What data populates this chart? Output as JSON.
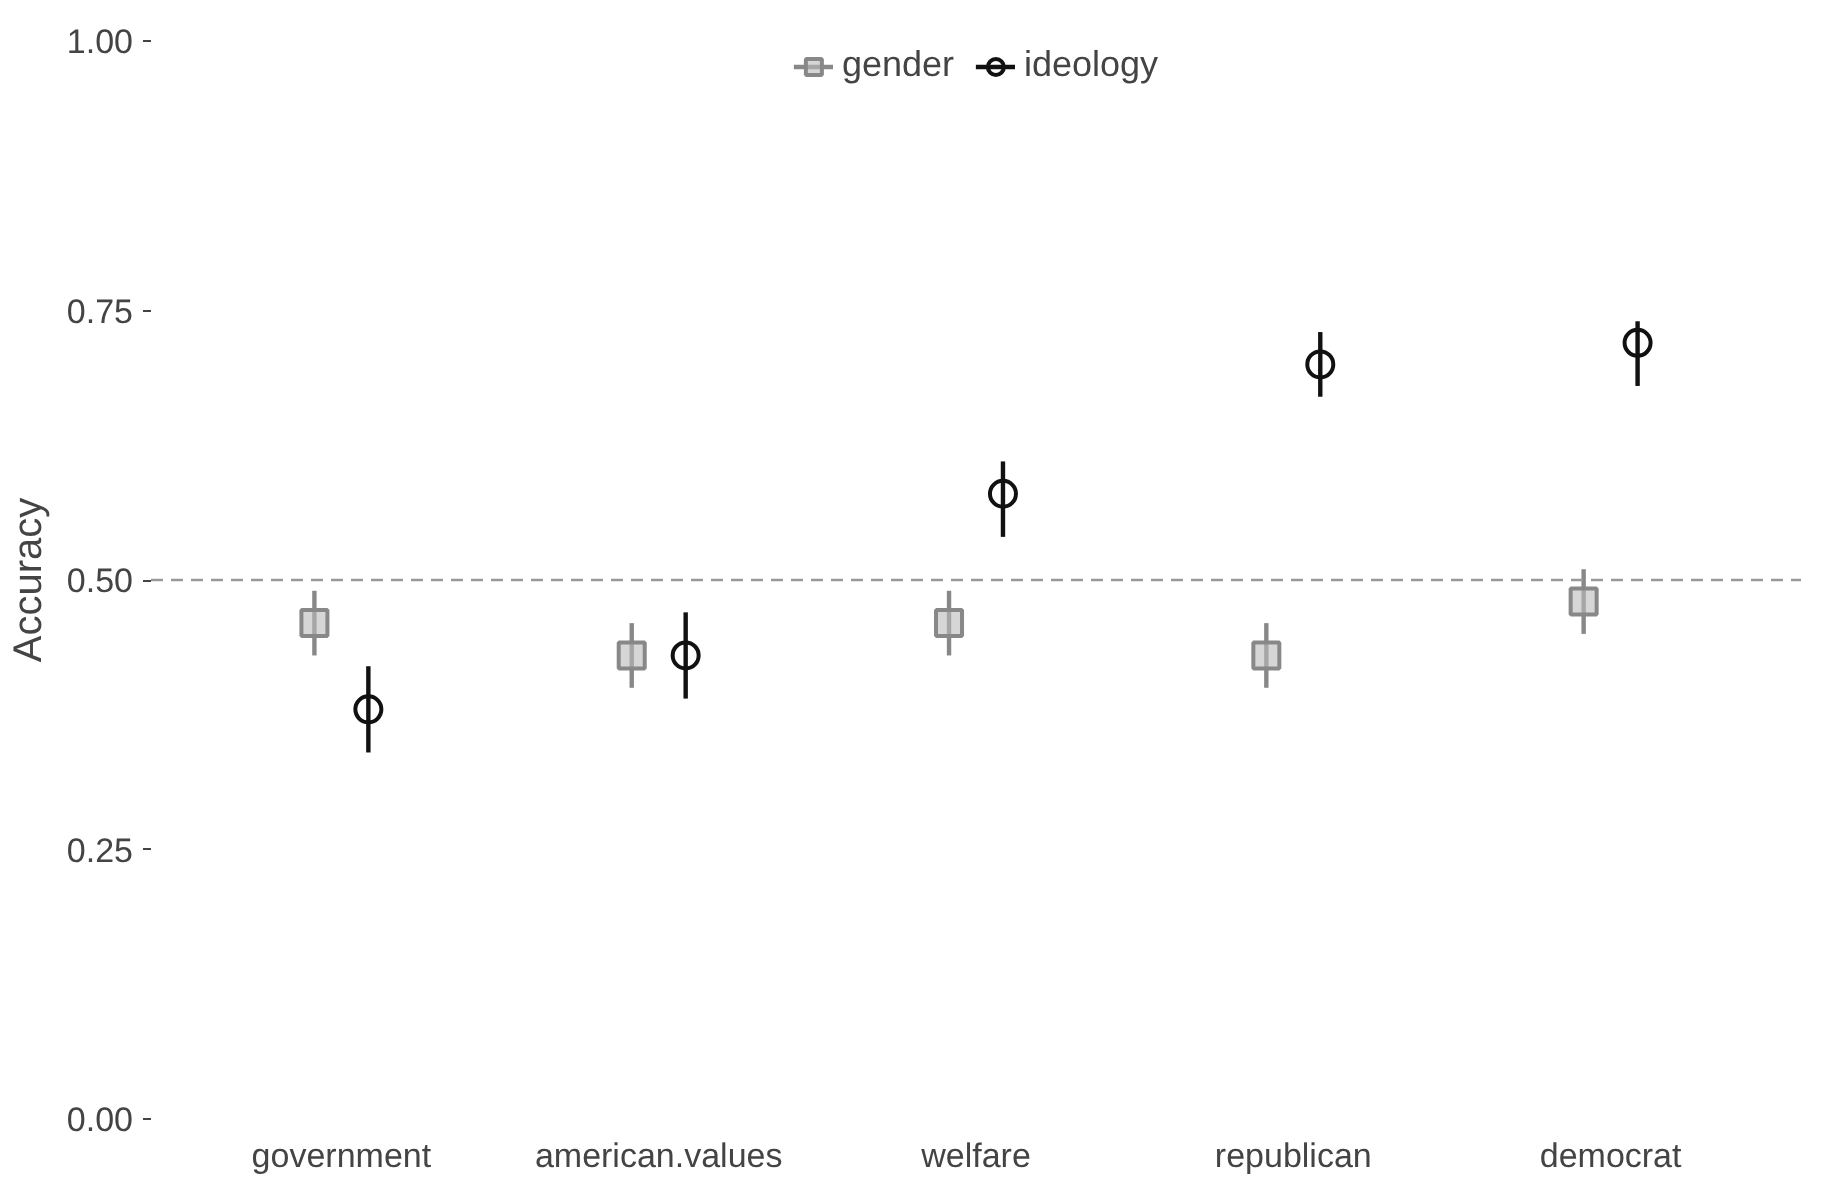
{
  "chart_data": {
    "type": "scatter",
    "ylabel": "Accuracy",
    "categories": [
      "government",
      "american.values",
      "welfare",
      "republican",
      "democrat"
    ],
    "series": [
      {
        "name": "gender",
        "color": "#888888",
        "marker": "square",
        "values": [
          0.46,
          0.43,
          0.46,
          0.43,
          0.48
        ],
        "errors": [
          [
            0.43,
            0.49
          ],
          [
            0.4,
            0.46
          ],
          [
            0.43,
            0.49
          ],
          [
            0.4,
            0.46
          ],
          [
            0.45,
            0.51
          ]
        ]
      },
      {
        "name": "ideology",
        "color": "#111111",
        "marker": "circle",
        "values": [
          0.38,
          0.43,
          0.58,
          0.7,
          0.72
        ],
        "errors": [
          [
            0.34,
            0.42
          ],
          [
            0.39,
            0.47
          ],
          [
            0.54,
            0.61
          ],
          [
            0.67,
            0.73
          ],
          [
            0.68,
            0.74
          ]
        ]
      }
    ],
    "ylim": [
      0,
      1
    ],
    "yticks": [
      {
        "value": 0,
        "label": "0.00"
      },
      {
        "value": 0.25,
        "label": "0.25"
      },
      {
        "value": 0.5,
        "label": "0.50"
      },
      {
        "value": 0.75,
        "label": "0.75"
      },
      {
        "value": 1,
        "label": "1.00"
      }
    ],
    "ref_lines": [
      {
        "axis": "y",
        "value": 0.5,
        "color": "#999999",
        "line_style": "dashed"
      }
    ],
    "grid": false,
    "legend": "top"
  }
}
